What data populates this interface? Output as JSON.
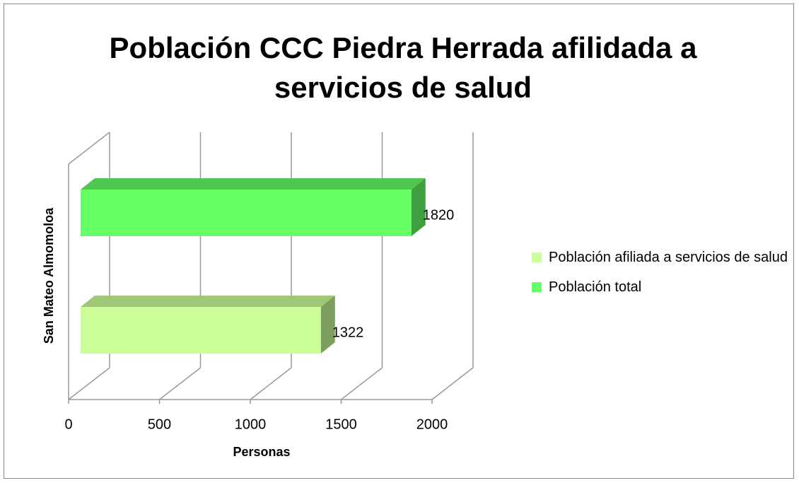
{
  "chart_data": {
    "type": "bar3d",
    "title": "Población CCC Piedra Herrada afilidada a servicios de salud",
    "categories": [
      "San Mateo Almomoloa"
    ],
    "xlabel": "Personas",
    "series": [
      {
        "name": "Población afiliada a servicios de salud",
        "color": "#ccff99",
        "values": [
          1322
        ]
      },
      {
        "name": "Población total",
        "color": "#66ff66",
        "values": [
          1820
        ]
      }
    ],
    "xlim": [
      0,
      2000
    ],
    "xticks": [
      0,
      500,
      1000,
      1500,
      2000
    ],
    "grid": true,
    "legend": "right"
  }
}
